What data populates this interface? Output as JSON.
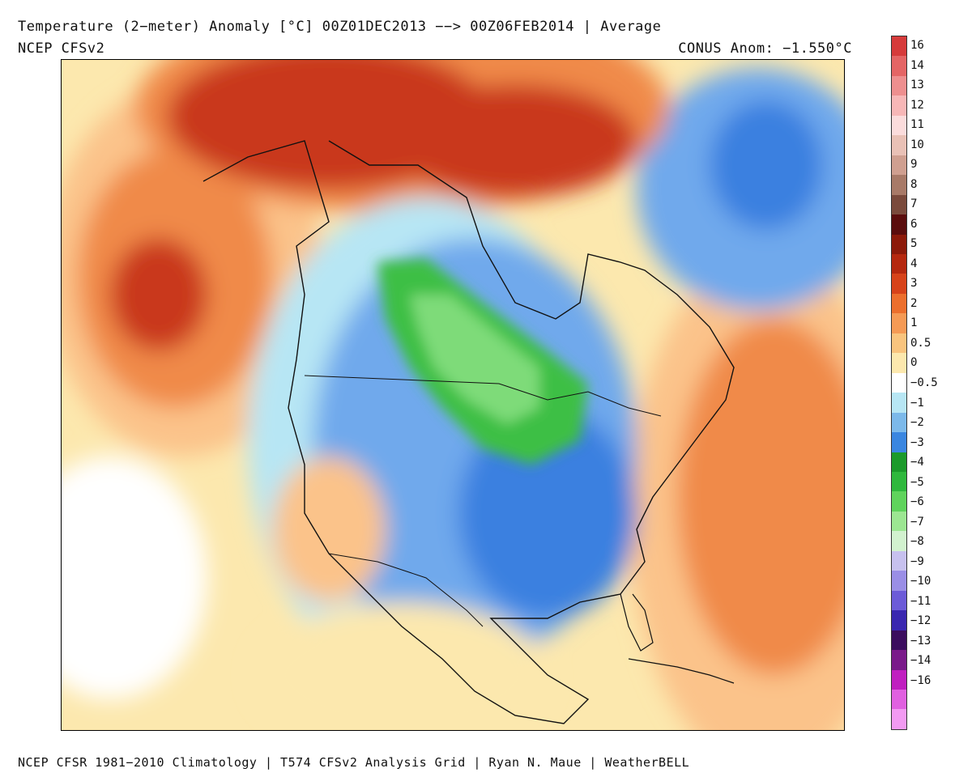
{
  "header": {
    "title": "Temperature (2−meter) Anomaly  [°C] 00Z01DEC2013 −−> 00Z06FEB2014 | Average",
    "model": "NCEP CFSv2",
    "conus_anomaly": "CONUS Anom: −1.550°C"
  },
  "footer": {
    "credits": "NCEP CFSR 1981−2010 Climatology | T574 CFSv2 Analysis Grid | Ryan N. Maue | WeatherBELL"
  },
  "legend": {
    "bins": [
      {
        "label": "16",
        "color": "#d63b3b"
      },
      {
        "label": "14",
        "color": "#e46565"
      },
      {
        "label": "13",
        "color": "#ee8f8f"
      },
      {
        "label": "12",
        "color": "#f7b7b7"
      },
      {
        "label": "11",
        "color": "#fbdcdc"
      },
      {
        "label": "10",
        "color": "#e9c1b6"
      },
      {
        "label": "9",
        "color": "#cf9f90"
      },
      {
        "label": "8",
        "color": "#a87a68"
      },
      {
        "label": "7",
        "color": "#7a4a3c"
      },
      {
        "label": "6",
        "color": "#5a0d0d"
      },
      {
        "label": "5",
        "color": "#8c1a0a"
      },
      {
        "label": "4",
        "color": "#b5280f"
      },
      {
        "label": "3",
        "color": "#d7431a"
      },
      {
        "label": "2",
        "color": "#ec6f2d"
      },
      {
        "label": "1",
        "color": "#f59a55"
      },
      {
        "label": "0.5",
        "color": "#f9c47e"
      },
      {
        "label": "0",
        "color": "#fce8ae"
      },
      {
        "label": "−0.5",
        "color": "#ffffff"
      },
      {
        "label": "−1",
        "color": "#b7e6f4"
      },
      {
        "label": "−2",
        "color": "#7cb9ea"
      },
      {
        "label": "−3",
        "color": "#3a86e0"
      },
      {
        "label": "−4",
        "color": "#1b9a2b"
      },
      {
        "label": "−5",
        "color": "#2fb83d"
      },
      {
        "label": "−6",
        "color": "#5fd35c"
      },
      {
        "label": "−7",
        "color": "#9ce692"
      },
      {
        "label": "−8",
        "color": "#d2f2cf"
      },
      {
        "label": "−9",
        "color": "#c7c1ef"
      },
      {
        "label": "−10",
        "color": "#9a8ee6"
      },
      {
        "label": "−11",
        "color": "#6c5bd8"
      },
      {
        "label": "−12",
        "color": "#3a27b0"
      },
      {
        "label": "−13",
        "color": "#3b0d5e"
      },
      {
        "label": "−14",
        "color": "#7a1a8a"
      },
      {
        "label": "−16",
        "color": "#c01fc0"
      },
      {
        "label": "",
        "color": "#e060e0"
      },
      {
        "label": "",
        "color": "#f29af2"
      }
    ]
  },
  "map_colors": {
    "warm_strong": "#c9391a",
    "warm_mid": "#f08a4a",
    "warm_light": "#fbc38a",
    "warm_pale": "#fce8ae",
    "cold_light": "#b7e6f4",
    "cold_mid": "#6fa9ec",
    "cold_deep": "#3a80e0",
    "extreme_cold_green": "#3dbf45",
    "extreme_cold_green_light": "#7edb79"
  }
}
